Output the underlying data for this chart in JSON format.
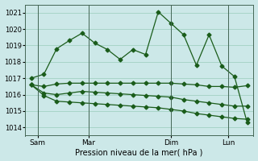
{
  "title": "",
  "xlabel": "Pression niveau de la mer( hPa )",
  "ylabel": "",
  "ylim": [
    1013.5,
    1021.5
  ],
  "yticks": [
    1014,
    1015,
    1016,
    1017,
    1018,
    1019,
    1020,
    1021
  ],
  "background_color": "#cce8e8",
  "grid_color": "#99ccbb",
  "line_color": "#1a5c1a",
  "day_labels": [
    "Sam",
    "Mar",
    "Dim",
    "Lun"
  ],
  "day_positions": [
    0.5,
    4.5,
    11.0,
    15.5
  ],
  "vline_positions": [
    0.5,
    4.5,
    11.0,
    15.5
  ],
  "lines": [
    {
      "x": [
        0,
        1,
        2,
        3,
        4,
        5,
        6,
        7,
        8,
        9,
        10,
        11,
        12,
        13,
        14,
        15,
        16,
        17
      ],
      "y": [
        1017.0,
        1017.25,
        1018.8,
        1019.3,
        1019.75,
        1019.15,
        1018.75,
        1018.15,
        1018.75,
        1018.45,
        1021.05,
        1020.35,
        1019.65,
        1017.8,
        1019.65,
        1017.75,
        1017.1,
        1014.3
      ]
    },
    {
      "x": [
        0,
        1,
        2,
        3,
        4,
        5,
        6,
        7,
        8,
        9,
        10,
        11,
        12,
        13,
        14,
        15,
        16,
        17
      ],
      "y": [
        1016.6,
        1016.5,
        1016.65,
        1016.7,
        1016.7,
        1016.7,
        1016.7,
        1016.7,
        1016.7,
        1016.7,
        1016.7,
        1016.7,
        1016.65,
        1016.6,
        1016.5,
        1016.5,
        1016.45,
        1016.55
      ]
    },
    {
      "x": [
        0,
        1,
        2,
        3,
        4,
        5,
        6,
        7,
        8,
        9,
        10,
        11,
        12,
        13,
        14,
        15,
        16,
        17
      ],
      "y": [
        1016.6,
        1016.1,
        1016.0,
        1016.1,
        1016.2,
        1016.15,
        1016.1,
        1016.05,
        1016.0,
        1015.95,
        1015.9,
        1015.85,
        1015.7,
        1015.6,
        1015.5,
        1015.4,
        1015.3,
        1015.3
      ]
    },
    {
      "x": [
        0,
        1,
        2,
        3,
        4,
        5,
        6,
        7,
        8,
        9,
        10,
        11,
        12,
        13,
        14,
        15,
        16,
        17
      ],
      "y": [
        1016.6,
        1015.95,
        1015.6,
        1015.55,
        1015.5,
        1015.45,
        1015.4,
        1015.35,
        1015.3,
        1015.25,
        1015.2,
        1015.1,
        1015.0,
        1014.85,
        1014.75,
        1014.65,
        1014.55,
        1014.5
      ]
    }
  ],
  "figsize": [
    3.2,
    2.0
  ],
  "dpi": 100
}
